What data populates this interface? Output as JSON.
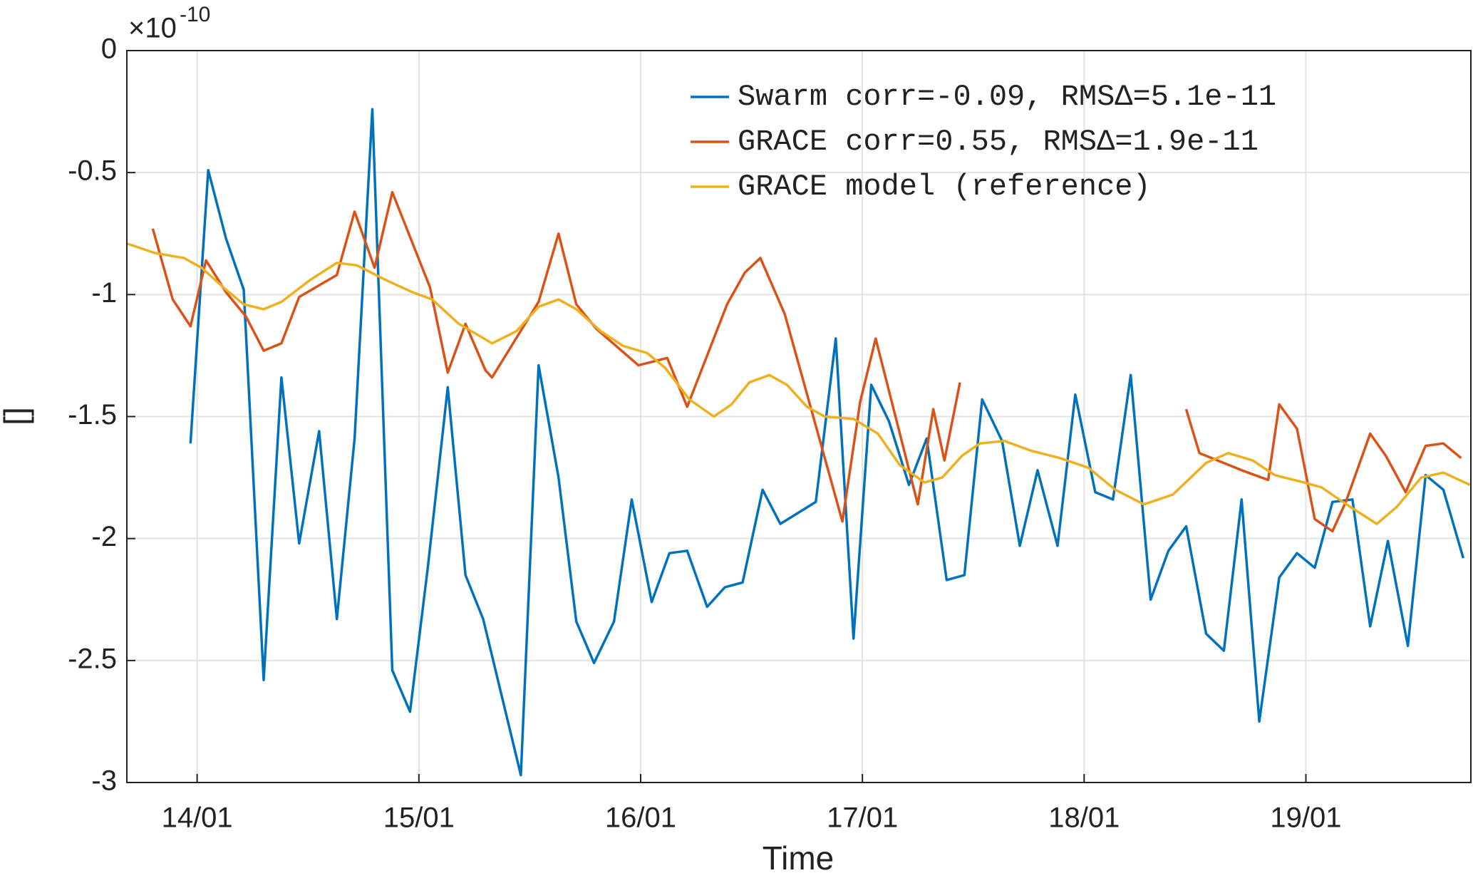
{
  "chart_data": {
    "type": "line",
    "xlabel": "Time",
    "ylabel": "[]",
    "y_exponent_base": "×10",
    "y_exponent": "-10",
    "xlim": [
      13.683,
      19.744
    ],
    "ylim": [
      -3,
      0
    ],
    "xticks": [
      {
        "value": 14,
        "label": "14/01"
      },
      {
        "value": 15,
        "label": "15/01"
      },
      {
        "value": 16,
        "label": "16/01"
      },
      {
        "value": 17,
        "label": "17/01"
      },
      {
        "value": 18,
        "label": "18/01"
      },
      {
        "value": 19,
        "label": "19/01"
      }
    ],
    "yticks": [
      0,
      -0.5,
      -1,
      -1.5,
      -2,
      -2.5,
      -3
    ],
    "grid": true,
    "legend": "upper right",
    "series": [
      {
        "name": "Swarm corr=-0.09, RMSΔ=5.1e-11",
        "color": "#0072bd",
        "x": [
          13.97,
          14.05,
          14.13,
          14.21,
          14.3,
          14.38,
          14.46,
          14.55,
          14.63,
          14.71,
          14.79,
          14.88,
          14.96,
          15.04,
          15.13,
          15.21,
          15.29,
          15.46,
          15.54,
          15.63,
          15.71,
          15.79,
          15.88,
          15.96,
          16.05,
          16.13,
          16.21,
          16.3,
          16.38,
          16.46,
          16.55,
          16.63,
          16.79,
          16.88,
          16.96,
          17.04,
          17.12,
          17.21,
          17.29,
          17.38,
          17.46,
          17.54,
          17.63,
          17.71,
          17.79,
          17.88,
          17.96,
          18.05,
          18.13,
          18.21,
          18.3,
          18.38,
          18.46,
          18.55,
          18.63,
          18.71,
          18.79,
          18.88,
          18.96,
          19.04,
          19.12,
          19.21,
          19.29,
          19.37,
          19.46,
          19.54,
          19.62,
          19.71
        ],
        "values": [
          -1.61,
          -0.49,
          -0.77,
          -0.98,
          -2.58,
          -1.34,
          -2.02,
          -1.56,
          -2.33,
          -1.59,
          -0.24,
          -2.54,
          -2.71,
          -2.12,
          -1.38,
          -2.15,
          -2.33,
          -2.97,
          -1.29,
          -1.75,
          -2.34,
          -2.51,
          -2.34,
          -1.84,
          -2.26,
          -2.06,
          -2.05,
          -2.28,
          -2.2,
          -2.18,
          -1.8,
          -1.94,
          -1.85,
          -1.18,
          -2.41,
          -1.37,
          -1.52,
          -1.78,
          -1.59,
          -2.17,
          -2.15,
          -1.43,
          -1.6,
          -2.03,
          -1.72,
          -2.03,
          -1.41,
          -1.81,
          -1.84,
          -1.33,
          -2.25,
          -2.05,
          -1.95,
          -2.39,
          -2.46,
          -1.84,
          -2.75,
          -2.16,
          -2.06,
          -2.12,
          -1.85,
          -1.84,
          -2.36,
          -2.01,
          -2.44,
          -1.74,
          -1.8,
          -2.08
        ]
      },
      {
        "name": "GRACE corr=0.55, RMSΔ=1.9e-11",
        "color": "#d95319",
        "x": [
          13.8,
          13.89,
          13.97,
          14.04,
          14.13,
          14.22,
          14.3,
          14.38,
          14.46,
          14.63,
          14.71,
          14.8,
          14.88,
          15.05,
          15.13,
          15.21,
          15.3,
          15.33,
          15.54,
          15.63,
          15.71,
          15.8,
          15.99,
          16.12,
          16.21,
          16.39,
          16.47,
          16.54,
          16.65,
          16.91,
          16.99,
          17.06,
          17.25,
          17.32,
          17.37,
          17.44,
          17.95,
          18.46,
          18.52,
          18.71,
          18.83,
          18.88,
          18.96,
          19.04,
          19.12,
          19.18,
          19.29,
          19.36,
          19.45,
          19.54,
          19.62,
          19.7
        ],
        "values": [
          -0.73,
          -1.02,
          -1.13,
          -0.86,
          -0.99,
          -1.09,
          -1.23,
          -1.2,
          -1.01,
          -0.92,
          -0.66,
          -0.89,
          -0.58,
          -0.97,
          -1.32,
          -1.12,
          -1.31,
          -1.34,
          -1.03,
          -0.75,
          -1.04,
          -1.14,
          -1.29,
          -1.26,
          -1.46,
          -1.04,
          -0.91,
          -0.85,
          -1.08,
          -1.93,
          -1.44,
          -1.18,
          -1.86,
          -1.47,
          -1.68,
          -1.36,
          null,
          -1.47,
          -1.65,
          -1.72,
          -1.76,
          -1.45,
          -1.55,
          -1.92,
          -1.97,
          -1.85,
          -1.57,
          -1.66,
          -1.81,
          -1.62,
          -1.61,
          -1.67
        ]
      },
      {
        "name": "GRACE model (reference)",
        "color": "#edb120",
        "x": [
          13.68,
          13.81,
          13.94,
          14.02,
          14.13,
          14.21,
          14.3,
          14.38,
          14.51,
          14.63,
          14.72,
          14.85,
          14.97,
          15.06,
          15.18,
          15.33,
          15.44,
          15.54,
          15.63,
          15.71,
          15.82,
          15.92,
          16.03,
          16.11,
          16.22,
          16.33,
          16.41,
          16.49,
          16.58,
          16.66,
          16.75,
          16.83,
          16.96,
          17.07,
          17.17,
          17.28,
          17.36,
          17.45,
          17.53,
          17.64,
          17.76,
          17.89,
          18.02,
          18.14,
          18.27,
          18.4,
          18.55,
          18.65,
          18.76,
          18.86,
          18.99,
          19.07,
          19.2,
          19.32,
          19.41,
          19.52,
          19.62,
          19.74
        ],
        "values": [
          -0.79,
          -0.83,
          -0.85,
          -0.89,
          -0.98,
          -1.04,
          -1.06,
          -1.03,
          -0.94,
          -0.87,
          -0.88,
          -0.94,
          -0.99,
          -1.02,
          -1.12,
          -1.2,
          -1.15,
          -1.05,
          -1.02,
          -1.06,
          -1.15,
          -1.21,
          -1.24,
          -1.3,
          -1.43,
          -1.5,
          -1.45,
          -1.36,
          -1.33,
          -1.37,
          -1.46,
          -1.5,
          -1.51,
          -1.57,
          -1.7,
          -1.77,
          -1.75,
          -1.66,
          -1.61,
          -1.6,
          -1.64,
          -1.67,
          -1.71,
          -1.8,
          -1.86,
          -1.82,
          -1.69,
          -1.65,
          -1.68,
          -1.74,
          -1.77,
          -1.79,
          -1.87,
          -1.94,
          -1.87,
          -1.75,
          -1.73,
          -1.78
        ]
      }
    ]
  }
}
